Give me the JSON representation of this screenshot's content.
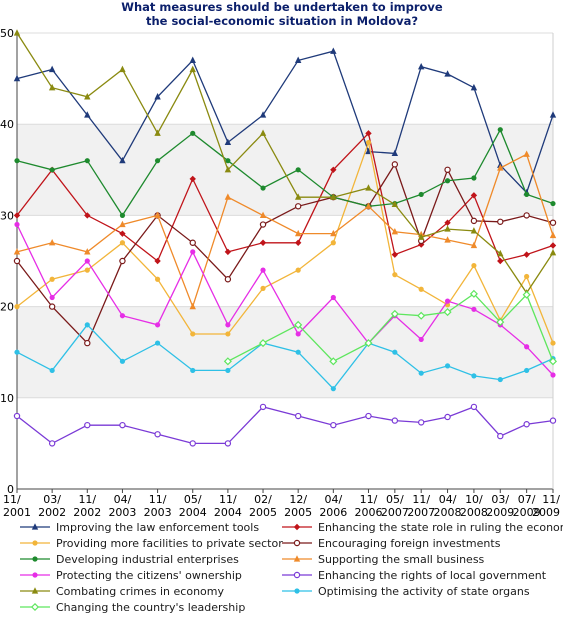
{
  "chart_data": {
    "type": "line",
    "title": [
      "What measures should be undertaken to improve",
      "the social-economic situation in Moldova?"
    ],
    "xlabel": "",
    "ylabel": "",
    "ylim": [
      0,
      50
    ],
    "yticks": [
      0,
      10,
      20,
      30,
      40,
      50
    ],
    "grid": "horizontal bands",
    "legend_position": "bottom",
    "categories": [
      [
        "11/",
        "2001"
      ],
      [
        "03/",
        "2002"
      ],
      [
        "11/",
        "2002"
      ],
      [
        "04/",
        "2003"
      ],
      [
        "11/",
        "2003"
      ],
      [
        "05/",
        "2004"
      ],
      [
        "11/",
        "2004"
      ],
      [
        "02/",
        "2005"
      ],
      [
        "12/",
        "2005"
      ],
      [
        "04/",
        "2006"
      ],
      [
        "11/",
        "2006"
      ],
      [
        "05/",
        "2007"
      ],
      [
        "11/",
        "2007"
      ],
      [
        "04/",
        "2008"
      ],
      [
        "10/",
        "2008"
      ],
      [
        "03/",
        "2009"
      ],
      [
        "07/",
        "2009"
      ],
      [
        "11/",
        "2009"
      ]
    ],
    "x": [
      0,
      1,
      2,
      3,
      4,
      5,
      6,
      7,
      8,
      9,
      10,
      10.75,
      11.5,
      12.25,
      13,
      13.75,
      14.5,
      15.25
    ],
    "series": [
      {
        "name": "Improving the law enforcement tools",
        "color": "#1f3a7a",
        "marker": "triangle",
        "values": [
          45,
          46,
          41,
          36,
          43,
          47,
          38,
          41,
          47,
          48,
          37,
          36.8,
          46.3,
          45.5,
          44,
          35.5,
          32.5,
          41
        ]
      },
      {
        "name": "Enhancing the state role in ruling the economy",
        "color": "#c0141a",
        "marker": "diamond",
        "values": [
          30,
          35,
          30,
          28,
          25,
          34,
          26,
          27,
          27,
          35,
          39,
          25.7,
          26.8,
          29.2,
          32.2,
          25,
          25.7,
          26.7
        ]
      },
      {
        "name": "Providing more facilities to private sector",
        "color": "#f2b53a",
        "marker": "circle",
        "values": [
          20,
          23,
          24,
          27,
          23,
          17,
          17,
          22,
          24,
          27,
          38,
          23.5,
          21.9,
          20.2,
          24.5,
          18.5,
          23.3,
          16
        ]
      },
      {
        "name": "Encouraging foreign investments",
        "color": "#7a1a1a",
        "marker": "circle-open",
        "values": [
          25,
          20,
          16,
          25,
          30,
          27,
          23,
          29,
          31,
          32,
          31,
          35.6,
          27.2,
          35,
          29.4,
          29.3,
          30,
          29.2
        ]
      },
      {
        "name": "Developing industrial enterprises",
        "color": "#1e8a2e",
        "marker": "circle",
        "values": [
          36,
          35,
          36,
          30,
          36,
          39,
          36,
          33,
          35,
          32,
          31,
          31.3,
          32.3,
          33.8,
          34.1,
          39.4,
          32.3,
          31.3
        ]
      },
      {
        "name": "Supporting the small business",
        "color": "#ef8a2a",
        "marker": "triangle",
        "values": [
          26,
          27,
          26,
          29,
          30,
          20,
          32,
          30,
          28,
          28,
          31,
          28.2,
          27.9,
          27.3,
          26.7,
          35.2,
          36.7,
          27.8
        ]
      },
      {
        "name": "Protecting the citizens' ownership",
        "color": "#e62ee6",
        "marker": "circle",
        "values": [
          29,
          21,
          25,
          19,
          18,
          26,
          18,
          24,
          17,
          21,
          16,
          19,
          16.4,
          20.6,
          19.7,
          18,
          15.6,
          12.5
        ]
      },
      {
        "name": "Enhancing the rights of local government",
        "color": "#7a3ad6",
        "marker": "circle-open",
        "values": [
          8,
          5,
          7,
          7,
          6,
          5,
          5,
          9,
          8,
          7,
          8,
          7.5,
          7.3,
          7.9,
          9,
          5.8,
          7.1,
          7.5
        ]
      },
      {
        "name": "Combating crimes in economy",
        "color": "#8a8a10",
        "marker": "triangle",
        "values": [
          50,
          44,
          43,
          46,
          39,
          46,
          35,
          39,
          32,
          32,
          33,
          31.2,
          27.6,
          28.5,
          28.3,
          25.8,
          21.5,
          25.9
        ]
      },
      {
        "name": "Optimising the activity of state organs",
        "color": "#2ec0e6",
        "marker": "circle",
        "values": [
          15,
          13,
          18,
          14,
          16,
          13,
          13,
          16,
          15,
          11,
          16,
          15,
          12.7,
          13.5,
          12.4,
          12,
          13,
          14.3
        ]
      },
      {
        "name": "Changing the country's leadership",
        "color": "#5ee65e",
        "marker": "diamond-open",
        "values": [
          null,
          null,
          null,
          null,
          null,
          null,
          14,
          16,
          18,
          14,
          16,
          19.2,
          19,
          19.4,
          21.4,
          18.3,
          21.3,
          14
        ]
      }
    ]
  }
}
